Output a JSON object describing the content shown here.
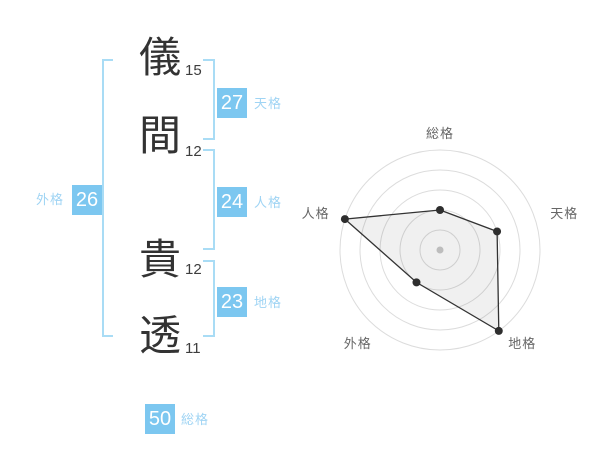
{
  "name_analysis": {
    "characters": [
      {
        "char": "儀",
        "strokes": "15"
      },
      {
        "char": "間",
        "strokes": "12"
      },
      {
        "char": "貴",
        "strokes": "12"
      },
      {
        "char": "透",
        "strokes": "11"
      }
    ],
    "categories": {
      "tenkaku": {
        "label": "天格",
        "value": "27"
      },
      "jinkaku": {
        "label": "人格",
        "value": "24"
      },
      "chikaku": {
        "label": "地格",
        "value": "23"
      },
      "gaikaku": {
        "label": "外格",
        "value": "26"
      },
      "soukaku": {
        "label": "総格",
        "value": "50"
      }
    },
    "colors": {
      "badge_bg": "#7cc7f0",
      "badge_text": "#ffffff",
      "label_blue": "#9fd4f4",
      "bracket_blue": "#a9dcf5",
      "kanji_text": "#333333",
      "stroke_text": "#3d3d3d"
    }
  },
  "chart_data": {
    "type": "radar",
    "title": "",
    "axes": [
      "総格",
      "天格",
      "地格",
      "外格",
      "人格"
    ],
    "values": [
      2,
      3,
      5,
      2,
      5
    ],
    "max": 5,
    "rings": 5,
    "grid": "circular",
    "legend": "none",
    "grid_color": "#dcdcdc",
    "line_color": "#333333",
    "point_color": "#2e2e2e",
    "fill_color": "rgba(0,0,0,0.06)",
    "center_dot_color": "#c9c9c9",
    "label_color": "#666666"
  }
}
